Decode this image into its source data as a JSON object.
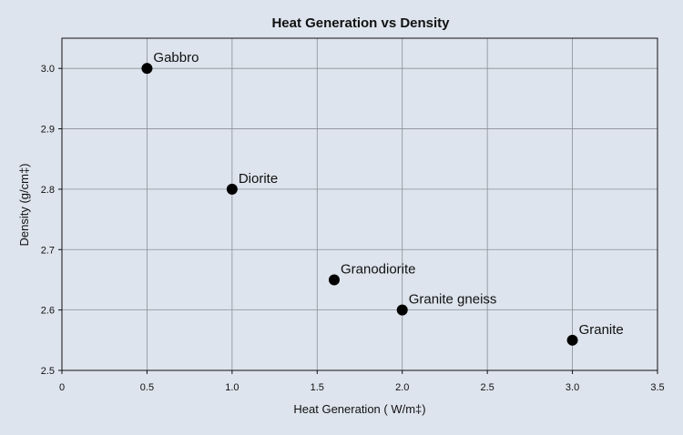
{
  "chart_data": {
    "type": "scatter",
    "title": "Heat Generation vs Density",
    "xlabel": "Heat Generation ( W/m‡)",
    "ylabel": "Density (g/cm‡)",
    "xlim": [
      0,
      3.5
    ],
    "ylim": [
      2.5,
      3.05
    ],
    "grid": true,
    "x_ticks": [
      "0",
      "0.5",
      "1.0",
      "1.5",
      "2.0",
      "2.5",
      "3.0",
      "3.5"
    ],
    "y_ticks": [
      "2.5",
      "2.6",
      "2.7",
      "2.8",
      "2.9",
      "3.0"
    ],
    "points": [
      {
        "label": "Gabbro",
        "x": 0.5,
        "y": 3.0
      },
      {
        "label": "Diorite",
        "x": 1.0,
        "y": 2.8
      },
      {
        "label": "Granodiorite",
        "x": 1.6,
        "y": 2.65
      },
      {
        "label": "Granite gneiss",
        "x": 2.0,
        "y": 2.6
      },
      {
        "label": "Granite",
        "x": 3.0,
        "y": 2.55
      }
    ],
    "marker_color": "#000000",
    "background_color": "#dde4ed"
  }
}
